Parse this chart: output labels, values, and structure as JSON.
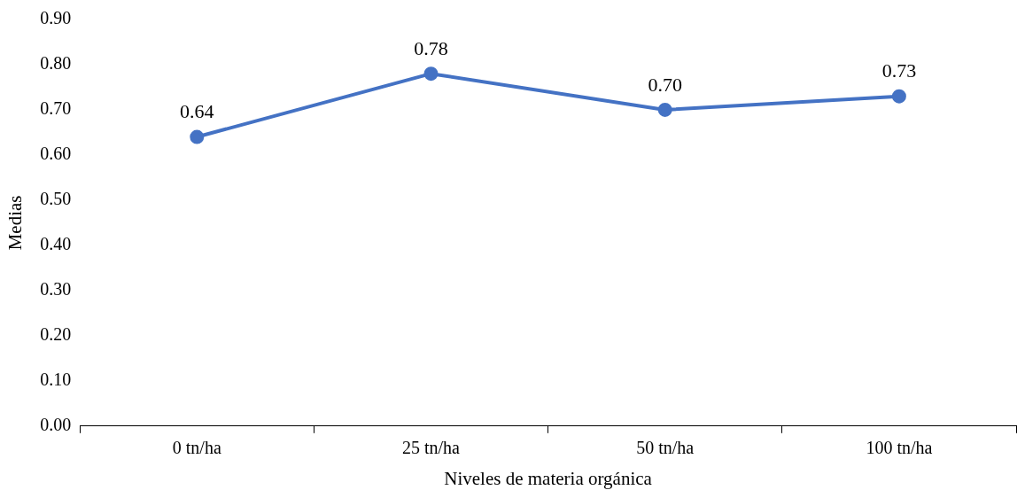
{
  "chart_data": {
    "type": "line",
    "xlabel": "Niveles de materia orgánica",
    "ylabel": "Medias",
    "categories": [
      "0 tn/ha",
      "25 tn/ha",
      "50 tn/ha",
      "100 tn/ha"
    ],
    "series": [
      {
        "color": "#4472c4",
        "values": [
          0.64,
          0.78,
          0.7,
          0.73
        ],
        "value_labels": [
          "0.64",
          "0.78",
          "0.70",
          "0.73"
        ]
      }
    ],
    "ylim": [
      0,
      0.9
    ],
    "yticks": [
      {
        "value": 0,
        "label": "0.00"
      },
      {
        "value": 0.1,
        "label": "0.10"
      },
      {
        "value": 0.2,
        "label": "0.20"
      },
      {
        "value": 0.3,
        "label": "0.30"
      },
      {
        "value": 0.4,
        "label": "0.40"
      },
      {
        "value": 0.5,
        "label": "0.50"
      },
      {
        "value": 0.6,
        "label": "0.60"
      },
      {
        "value": 0.7,
        "label": "0.70"
      },
      {
        "value": 0.8,
        "label": "0.80"
      },
      {
        "value": 0.9,
        "label": "0.90"
      }
    ],
    "grid": false,
    "legend": false,
    "marker": "circle",
    "line_style": "solid"
  }
}
